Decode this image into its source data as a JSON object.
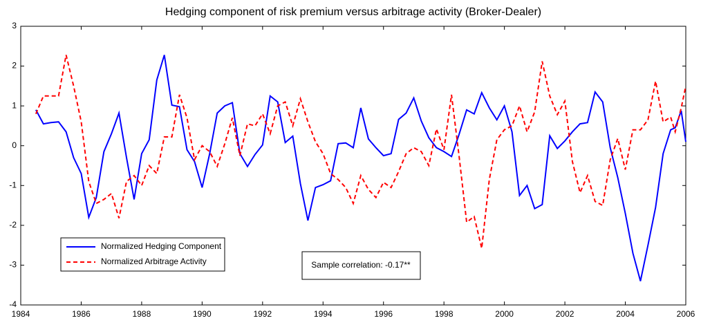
{
  "chart_data": {
    "type": "line",
    "title": "Hedging component of risk premium versus arbitrage activity (Broker-Dealer)",
    "annotation": "Sample correlation: -0.17**",
    "legend": "lower left",
    "grid": false,
    "xlim": [
      1984,
      2006
    ],
    "xticks": [
      1984,
      1986,
      1988,
      1990,
      1992,
      1994,
      1996,
      1998,
      2000,
      2002,
      2004,
      2006
    ],
    "ylim": [
      -4,
      3
    ],
    "yticks": [
      -4,
      -3,
      -2,
      -1,
      0,
      1,
      2,
      3
    ],
    "x": [
      1984.5,
      1984.75,
      1985,
      1985.25,
      1985.5,
      1985.75,
      1986,
      1986.25,
      1986.5,
      1986.75,
      1987,
      1987.25,
      1987.5,
      1987.75,
      1988,
      1988.25,
      1988.5,
      1988.75,
      1989,
      1989.25,
      1989.5,
      1989.75,
      1990,
      1990.25,
      1990.5,
      1990.75,
      1991,
      1991.25,
      1991.5,
      1991.75,
      1992,
      1992.25,
      1992.5,
      1992.75,
      1993,
      1993.25,
      1993.5,
      1993.75,
      1994,
      1994.25,
      1994.5,
      1994.75,
      1995,
      1995.25,
      1995.5,
      1995.75,
      1996,
      1996.25,
      1996.5,
      1996.75,
      1997,
      1997.25,
      1997.5,
      1997.75,
      1998,
      1998.25,
      1998.5,
      1998.75,
      1999,
      1999.25,
      1999.5,
      1999.75,
      2000,
      2000.25,
      2000.5,
      2000.75,
      2001,
      2001.25,
      2001.5,
      2001.75,
      2002,
      2002.25,
      2002.5,
      2002.75,
      2003,
      2003.25,
      2003.5,
      2003.75,
      2004,
      2004.25,
      2004.5,
      2004.75,
      2005,
      2005.25,
      2005.5,
      2005.65,
      2005.85,
      2006
    ],
    "series": [
      {
        "name": "Normalized Hedging Component",
        "color": "#0000ff",
        "dash": "solid",
        "values": [
          0.9,
          0.55,
          0.58,
          0.6,
          0.35,
          -0.3,
          -0.7,
          -1.8,
          -1.3,
          -0.15,
          0.3,
          0.82,
          -0.3,
          -1.35,
          -0.2,
          0.15,
          1.65,
          2.28,
          1.02,
          0.98,
          -0.1,
          -0.4,
          -1.05,
          -0.2,
          0.82,
          1.0,
          1.08,
          -0.2,
          -0.52,
          -0.22,
          0.02,
          1.25,
          1.1,
          0.08,
          0.24,
          -0.95,
          -1.88,
          -1.05,
          -0.98,
          -0.88,
          0.05,
          0.07,
          -0.05,
          0.95,
          0.17,
          -0.05,
          -0.25,
          -0.2,
          0.66,
          0.82,
          1.2,
          0.62,
          0.2,
          -0.05,
          -0.15,
          -0.27,
          0.28,
          0.9,
          0.8,
          1.33,
          0.95,
          0.65,
          1.0,
          0.35,
          -1.25,
          -1.0,
          -1.58,
          -1.48,
          0.25,
          -0.07,
          0.12,
          0.35,
          0.55,
          0.58,
          1.35,
          1.1,
          -0.05,
          -0.8,
          -1.7,
          -2.7,
          -3.4,
          -2.5,
          -1.55,
          -0.2,
          0.4,
          0.45,
          0.88,
          0.1
        ]
      },
      {
        "name": "Normalized Arbitrage Activity",
        "color": "#ff0000",
        "dash": "dashed",
        "values": [
          0.8,
          1.25,
          1.25,
          1.25,
          2.28,
          1.5,
          0.6,
          -0.9,
          -1.45,
          -1.35,
          -1.2,
          -1.82,
          -0.9,
          -0.75,
          -1.0,
          -0.5,
          -0.7,
          0.22,
          0.22,
          1.28,
          0.7,
          -0.35,
          0.0,
          -0.15,
          -0.52,
          0.05,
          0.7,
          -0.25,
          0.55,
          0.5,
          0.8,
          0.3,
          1.0,
          1.1,
          0.5,
          1.18,
          0.6,
          0.1,
          -0.2,
          -0.7,
          -0.85,
          -1.05,
          -1.45,
          -0.75,
          -1.1,
          -1.3,
          -0.92,
          -1.05,
          -0.65,
          -0.2,
          -0.05,
          -0.15,
          -0.5,
          0.42,
          -0.1,
          1.28,
          -0.25,
          -1.92,
          -1.78,
          -2.58,
          -0.85,
          0.15,
          0.4,
          0.5,
          1.0,
          0.35,
          0.85,
          2.12,
          1.25,
          0.78,
          1.12,
          -0.4,
          -1.18,
          -0.75,
          -1.4,
          -1.5,
          -0.35,
          0.18,
          -0.6,
          0.4,
          0.4,
          0.65,
          1.62,
          0.6,
          0.72,
          0.35,
          0.95,
          1.5
        ]
      }
    ]
  }
}
